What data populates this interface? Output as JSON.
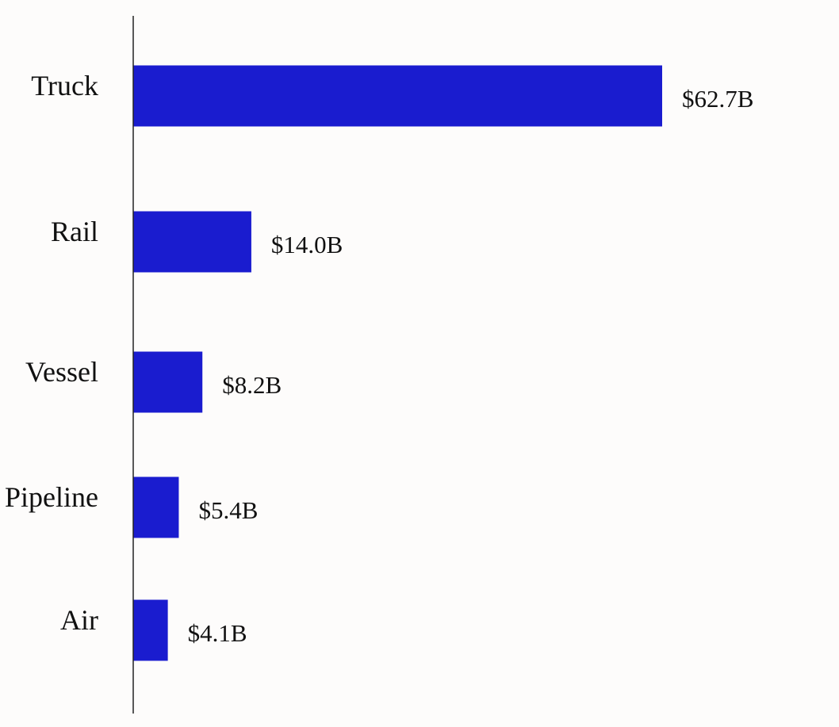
{
  "chart_data": {
    "type": "bar",
    "orientation": "horizontal",
    "title": "",
    "xlabel": "",
    "ylabel": "",
    "categories": [
      "Truck",
      "Rail",
      "Vessel",
      "Pipeline",
      "Air"
    ],
    "values": [
      62.7,
      14.0,
      8.2,
      5.4,
      4.1
    ],
    "value_labels": [
      "$62.7B",
      "$14.0B",
      "$8.2B",
      "$5.4B",
      "$4.1B"
    ],
    "unit": "billion USD",
    "xlim": [
      0,
      62.7
    ],
    "grid": false,
    "legend": "none",
    "colors": {
      "bar": "#1a1ccf",
      "axis": "#222222",
      "background": "#fdfcfb"
    }
  }
}
